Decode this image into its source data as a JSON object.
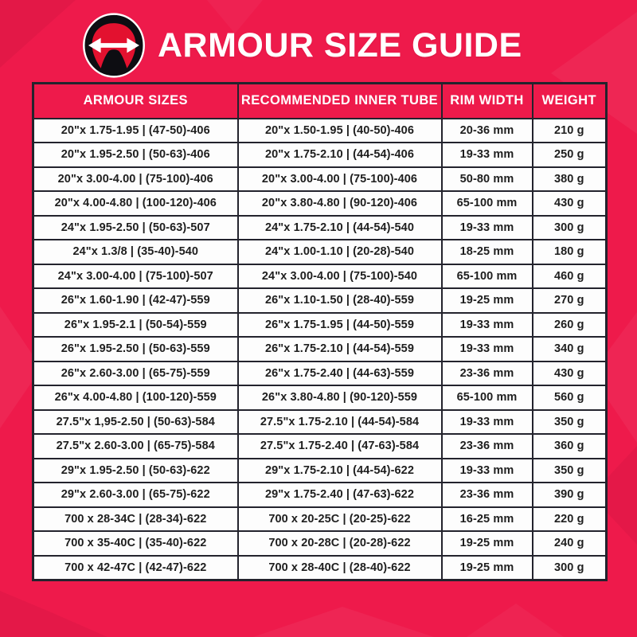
{
  "header": {
    "title": "ARMOUR SIZE GUIDE",
    "logo_icon": "tire-width-arrow-icon"
  },
  "colors": {
    "background": "#EE1A4B",
    "header_cell": "#EE1A4B",
    "table_border": "#23232d",
    "cell_background": "#fdfdfd",
    "cell_text": "#1e1e1e",
    "title_text": "#ffffff",
    "logo_badge": "#0d0d12",
    "logo_tire": "#e3112f"
  },
  "table": {
    "columns": [
      "ARMOUR SIZES",
      "RECOMMENDED INNER TUBE",
      "RIM WIDTH",
      "WEIGHT"
    ],
    "column_keys": [
      "armour-size",
      "inner-tube",
      "rim-width",
      "weight"
    ],
    "rows": [
      [
        "20\"x 1.75-1.95 | (47-50)-406",
        "20\"x 1.50-1.95 | (40-50)-406",
        "20-36 mm",
        "210 g"
      ],
      [
        "20\"x 1.95-2.50 | (50-63)-406",
        "20\"x 1.75-2.10 | (44-54)-406",
        "19-33 mm",
        "250 g"
      ],
      [
        "20\"x 3.00-4.00 | (75-100)-406",
        "20\"x 3.00-4.00 | (75-100)-406",
        "50-80 mm",
        "380 g"
      ],
      [
        "20\"x 4.00-4.80 | (100-120)-406",
        "20\"x 3.80-4.80 | (90-120)-406",
        "65-100 mm",
        "430 g"
      ],
      [
        "24\"x 1.95-2.50 | (50-63)-507",
        "24\"x 1.75-2.10 | (44-54)-540",
        "19-33 mm",
        "300 g"
      ],
      [
        "24\"x 1.3/8 | (35-40)-540",
        "24\"x 1.00-1.10 | (20-28)-540",
        "18-25 mm",
        "180 g"
      ],
      [
        "24\"x 3.00-4.00 | (75-100)-507",
        "24\"x 3.00-4.00 | (75-100)-540",
        "65-100 mm",
        "460 g"
      ],
      [
        "26\"x 1.60-1.90 | (42-47)-559",
        "26\"x 1.10-1.50 | (28-40)-559",
        "19-25 mm",
        "270 g"
      ],
      [
        "26\"x 1.95-2.1 | (50-54)-559",
        "26\"x 1.75-1.95 | (44-50)-559",
        "19-33 mm",
        "260 g"
      ],
      [
        "26\"x 1.95-2.50 | (50-63)-559",
        "26\"x 1.75-2.10 | (44-54)-559",
        "19-33 mm",
        "340 g"
      ],
      [
        "26\"x 2.60-3.00 | (65-75)-559",
        "26\"x 1.75-2.40 | (44-63)-559",
        "23-36 mm",
        "430 g"
      ],
      [
        "26\"x 4.00-4.80 | (100-120)-559",
        "26\"x 3.80-4.80 | (90-120)-559",
        "65-100 mm",
        "560 g"
      ],
      [
        "27.5\"x 1,95-2.50 | (50-63)-584",
        "27.5\"x 1.75-2.10 | (44-54)-584",
        "19-33 mm",
        "350 g"
      ],
      [
        "27.5\"x 2.60-3.00 | (65-75)-584",
        "27.5\"x 1.75-2.40 | (47-63)-584",
        "23-36 mm",
        "360 g"
      ],
      [
        "29\"x 1.95-2.50 | (50-63)-622",
        "29\"x 1.75-2.10 | (44-54)-622",
        "19-33 mm",
        "350 g"
      ],
      [
        "29\"x 2.60-3.00 | (65-75)-622",
        "29\"x 1.75-2.40 | (47-63)-622",
        "23-36 mm",
        "390 g"
      ],
      [
        "700 x 28-34C | (28-34)-622",
        "700 x 20-25C | (20-25)-622",
        "16-25 mm",
        "220 g"
      ],
      [
        "700 x 35-40C | (35-40)-622",
        "700 x 20-28C | (20-28)-622",
        "19-25 mm",
        "240 g"
      ],
      [
        "700 x 42-47C | (42-47)-622",
        "700 x 28-40C | (28-40)-622",
        "19-25 mm",
        "300 g"
      ]
    ]
  }
}
